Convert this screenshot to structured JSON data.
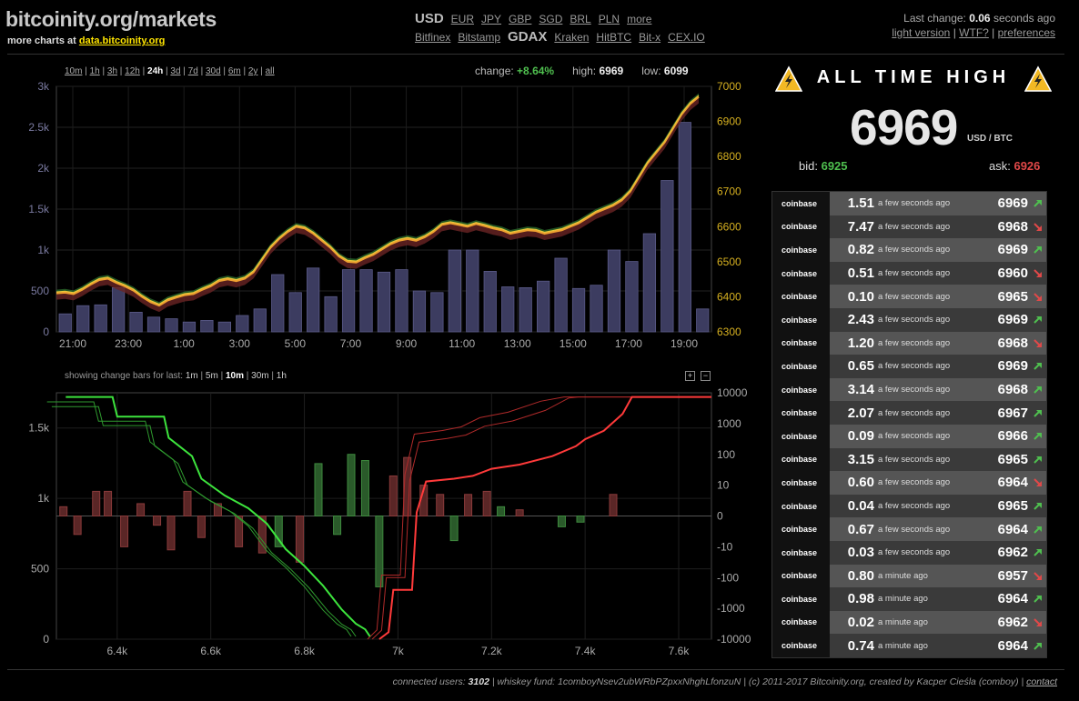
{
  "header": {
    "title": "bitcoinity.org/markets",
    "subtitle_prefix": "more charts at",
    "subtitle_link": "data.bitcoinity.org",
    "currencies": [
      {
        "label": "USD",
        "selected": true
      },
      {
        "label": "EUR"
      },
      {
        "label": "JPY"
      },
      {
        "label": "GBP"
      },
      {
        "label": "SGD"
      },
      {
        "label": "BRL"
      },
      {
        "label": "PLN"
      },
      {
        "label": "more"
      }
    ],
    "exchanges": [
      {
        "label": "Bitfinex"
      },
      {
        "label": "Bitstamp"
      },
      {
        "label": "GDAX",
        "selected": true
      },
      {
        "label": "Kraken"
      },
      {
        "label": "HitBTC"
      },
      {
        "label": "Bit-x"
      },
      {
        "label": "CEX.IO"
      }
    ],
    "last_change_prefix": "Last change:",
    "last_change_value": "0.06",
    "last_change_suffix": "seconds ago",
    "links": [
      "light version",
      "WTF?",
      "preferences"
    ]
  },
  "price_chart": {
    "ranges": [
      "10m",
      "1h",
      "3h",
      "12h",
      "24h",
      "3d",
      "7d",
      "30d",
      "6m",
      "2y",
      "all"
    ],
    "selected_range": "24h",
    "change_label": "change:",
    "change_value": "+8.64%",
    "high_label": "high:",
    "high_value": "6969",
    "low_label": "low:",
    "low_value": "6099"
  },
  "orderbook_chart": {
    "label": "showing change bars for last:",
    "ranges": [
      "1m",
      "5m",
      "10m",
      "30m",
      "1h"
    ],
    "selected_range": "10m",
    "zoom_in": "+",
    "zoom_out": "−"
  },
  "chart_data": [
    {
      "type": "line",
      "title": "",
      "x_labels": [
        "21:00",
        "23:00",
        "1:00",
        "3:00",
        "5:00",
        "7:00",
        "9:00",
        "11:00",
        "13:00",
        "15:00",
        "17:00",
        "19:00"
      ],
      "y_left_labels": [
        "0",
        "500",
        "1k",
        "1.5k",
        "2k",
        "2.5k",
        "3k"
      ],
      "y_left_range": [
        0,
        3000
      ],
      "y_right_labels": [
        "6300",
        "6400",
        "6500",
        "6600",
        "6700",
        "6800",
        "6900",
        "7000"
      ],
      "y_right_range": [
        6300,
        7000
      ],
      "series": [
        {
          "type": "line",
          "color": "#e8c83a",
          "values": [
            6410,
            6412,
            6408,
            6420,
            6435,
            6448,
            6452,
            6440,
            6430,
            6418,
            6400,
            6385,
            6375,
            6390,
            6398,
            6405,
            6408,
            6420,
            6430,
            6445,
            6450,
            6445,
            6452,
            6470,
            6505,
            6540,
            6565,
            6585,
            6600,
            6595,
            6580,
            6560,
            6540,
            6515,
            6500,
            6498,
            6510,
            6520,
            6535,
            6550,
            6560,
            6565,
            6560,
            6570,
            6585,
            6605,
            6610,
            6605,
            6600,
            6608,
            6602,
            6595,
            6590,
            6580,
            6585,
            6590,
            6588,
            6580,
            6585,
            6590,
            6600,
            6610,
            6625,
            6640,
            6650,
            6660,
            6675,
            6700,
            6740,
            6780,
            6810,
            6840,
            6880,
            6920,
            6950,
            6970
          ]
        },
        {
          "type": "bar",
          "color": "#3c3c60",
          "values": [
            220,
            320,
            330,
            540,
            240,
            180,
            160,
            120,
            140,
            120,
            200,
            280,
            700,
            480,
            780,
            430,
            760,
            760,
            730,
            760,
            500,
            480,
            1000,
            1000,
            740,
            550,
            540,
            620,
            900,
            530,
            570,
            1000,
            860,
            1200,
            1850,
            2560,
            280
          ]
        }
      ]
    },
    {
      "type": "area",
      "title": "",
      "x_labels": [
        "6.4k",
        "6.6k",
        "6.8k",
        "7k",
        "7.2k",
        "7.4k",
        "7.6k"
      ],
      "x_range": [
        6270,
        7670
      ],
      "y_left_labels": [
        "0",
        "500",
        "1k",
        "1.5k"
      ],
      "y_left_range": [
        0,
        1750
      ],
      "y_right_labels": [
        "-10000",
        "-1000",
        "-100",
        "-10",
        "0",
        "10",
        "100",
        "1000",
        "10000"
      ],
      "series": [
        {
          "name": "bids",
          "color": "#3de43d",
          "x": [
            6290,
            6320,
            6390,
            6400,
            6430,
            6500,
            6510,
            6560,
            6580,
            6630,
            6680,
            6720,
            6760,
            6800,
            6840,
            6880,
            6910,
            6930,
            6940
          ],
          "y": [
            1720,
            1720,
            1720,
            1580,
            1580,
            1580,
            1430,
            1300,
            1140,
            1020,
            930,
            820,
            640,
            520,
            380,
            210,
            110,
            70,
            20
          ]
        },
        {
          "name": "asks",
          "color": "#ff3a3a",
          "x": [
            6960,
            6980,
            6990,
            7030,
            7040,
            7060,
            7120,
            7160,
            7200,
            7260,
            7330,
            7380,
            7400,
            7440,
            7480,
            7500,
            7560,
            7670
          ],
          "y": [
            0,
            50,
            350,
            350,
            900,
            1120,
            1140,
            1160,
            1210,
            1240,
            1300,
            1370,
            1420,
            1480,
            1600,
            1720,
            1720,
            1720
          ]
        }
      ],
      "change_bars": [
        {
          "x": 6285,
          "v": 0.3,
          "side": "ask"
        },
        {
          "x": 6315,
          "v": -0.6,
          "side": "ask"
        },
        {
          "x": 6355,
          "v": 0.8,
          "side": "ask"
        },
        {
          "x": 6380,
          "v": 0.8,
          "side": "ask"
        },
        {
          "x": 6415,
          "v": -1.0,
          "side": "ask"
        },
        {
          "x": 6450,
          "v": 0.4,
          "side": "ask"
        },
        {
          "x": 6485,
          "v": -0.3,
          "side": "ask"
        },
        {
          "x": 6515,
          "v": -1.1,
          "side": "ask"
        },
        {
          "x": 6550,
          "v": 0.8,
          "side": "ask"
        },
        {
          "x": 6580,
          "v": -0.7,
          "side": "ask"
        },
        {
          "x": 6615,
          "v": 0.4,
          "side": "ask"
        },
        {
          "x": 6660,
          "v": -1.0,
          "side": "ask"
        },
        {
          "x": 6710,
          "v": -1.2,
          "side": "ask"
        },
        {
          "x": 6745,
          "v": -1.0,
          "side": "bid"
        },
        {
          "x": 6790,
          "v": -1.5,
          "side": "ask"
        },
        {
          "x": 6830,
          "v": 1.7,
          "side": "bid"
        },
        {
          "x": 6870,
          "v": -0.6,
          "side": "bid"
        },
        {
          "x": 6900,
          "v": 2.0,
          "side": "bid"
        },
        {
          "x": 6930,
          "v": 1.8,
          "side": "bid"
        },
        {
          "x": 6960,
          "v": -2.3,
          "side": "bid"
        },
        {
          "x": 6990,
          "v": 1.3,
          "side": "ask"
        },
        {
          "x": 7020,
          "v": 1.9,
          "side": "ask"
        },
        {
          "x": 7055,
          "v": 1.0,
          "side": "ask"
        },
        {
          "x": 7090,
          "v": 0.7,
          "side": "ask"
        },
        {
          "x": 7120,
          "v": -0.8,
          "side": "bid"
        },
        {
          "x": 7150,
          "v": 0.7,
          "side": "ask"
        },
        {
          "x": 7190,
          "v": 0.8,
          "side": "ask"
        },
        {
          "x": 7220,
          "v": 0.3,
          "side": "bid"
        },
        {
          "x": 7260,
          "v": 0.2,
          "side": "ask"
        },
        {
          "x": 7350,
          "v": -0.35,
          "side": "bid"
        },
        {
          "x": 7390,
          "v": -0.2,
          "side": "bid"
        },
        {
          "x": 7460,
          "v": 0.7,
          "side": "ask"
        }
      ]
    }
  ],
  "ticker": {
    "banner": "ALL TIME HIGH",
    "price": "6969",
    "unit": "USD / BTC",
    "bid_label": "bid:",
    "bid_value": "6925",
    "ask_label": "ask:",
    "ask_value": "6926"
  },
  "trades": [
    {
      "exchange": "coinbase",
      "amount": "1.51",
      "time": "a few seconds ago",
      "price": "6969",
      "dir": "up"
    },
    {
      "exchange": "coinbase",
      "amount": "7.47",
      "time": "a few seconds ago",
      "price": "6968",
      "dir": "down"
    },
    {
      "exchange": "coinbase",
      "amount": "0.82",
      "time": "a few seconds ago",
      "price": "6969",
      "dir": "up"
    },
    {
      "exchange": "coinbase",
      "amount": "0.51",
      "time": "a few seconds ago",
      "price": "6960",
      "dir": "down"
    },
    {
      "exchange": "coinbase",
      "amount": "0.10",
      "time": "a few seconds ago",
      "price": "6965",
      "dir": "down"
    },
    {
      "exchange": "coinbase",
      "amount": "2.43",
      "time": "a few seconds ago",
      "price": "6969",
      "dir": "up"
    },
    {
      "exchange": "coinbase",
      "amount": "1.20",
      "time": "a few seconds ago",
      "price": "6968",
      "dir": "down"
    },
    {
      "exchange": "coinbase",
      "amount": "0.65",
      "time": "a few seconds ago",
      "price": "6969",
      "dir": "up"
    },
    {
      "exchange": "coinbase",
      "amount": "3.14",
      "time": "a few seconds ago",
      "price": "6968",
      "dir": "up"
    },
    {
      "exchange": "coinbase",
      "amount": "2.07",
      "time": "a few seconds ago",
      "price": "6967",
      "dir": "up"
    },
    {
      "exchange": "coinbase",
      "amount": "0.09",
      "time": "a few seconds ago",
      "price": "6966",
      "dir": "up"
    },
    {
      "exchange": "coinbase",
      "amount": "3.15",
      "time": "a few seconds ago",
      "price": "6965",
      "dir": "up"
    },
    {
      "exchange": "coinbase",
      "amount": "0.60",
      "time": "a few seconds ago",
      "price": "6964",
      "dir": "down"
    },
    {
      "exchange": "coinbase",
      "amount": "0.04",
      "time": "a few seconds ago",
      "price": "6965",
      "dir": "up"
    },
    {
      "exchange": "coinbase",
      "amount": "0.67",
      "time": "a few seconds ago",
      "price": "6964",
      "dir": "up"
    },
    {
      "exchange": "coinbase",
      "amount": "0.03",
      "time": "a few seconds ago",
      "price": "6962",
      "dir": "up"
    },
    {
      "exchange": "coinbase",
      "amount": "0.80",
      "time": "a minute ago",
      "price": "6957",
      "dir": "down"
    },
    {
      "exchange": "coinbase",
      "amount": "0.98",
      "time": "a minute ago",
      "price": "6964",
      "dir": "up"
    },
    {
      "exchange": "coinbase",
      "amount": "0.02",
      "time": "a minute ago",
      "price": "6962",
      "dir": "down"
    },
    {
      "exchange": "coinbase",
      "amount": "0.74",
      "time": "a minute ago",
      "price": "6964",
      "dir": "up"
    }
  ],
  "footer": {
    "users_label": "connected users:",
    "users_value": "3102",
    "rest": "| whiskey fund: 1comboyNsev2ubWRbPZpxxNhghLfonzuN | (c) 2011-2017 Bitcoinity.org, created by Kacper Cieśla (comboy) |",
    "contact": "contact"
  },
  "colors": {
    "green": "#4fbf4f",
    "red": "#e04848",
    "price_line": "#e8c83a",
    "volume_bar": "#3c3c60"
  }
}
